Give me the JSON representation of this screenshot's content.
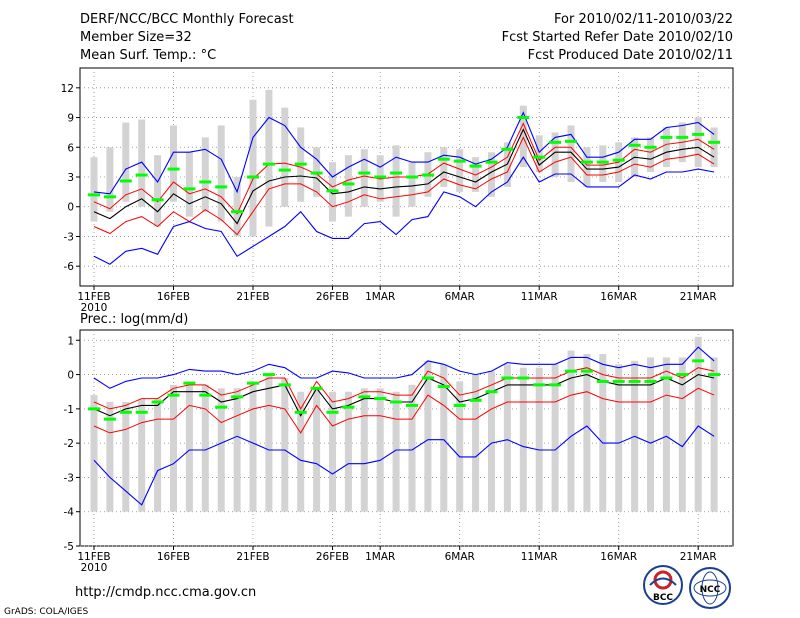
{
  "header": {
    "left_line1": "DERF/NCC/BCC Monthly Forecast",
    "left_line2": "Member Size=32",
    "left_line3": "Mean Surf. Temp.: °C",
    "right_line1": "For 2010/02/11-2010/03/22",
    "right_line2": "Fcst Started Refer Date 2010/02/10",
    "right_line3": "Fcst Produced Date 2010/02/11"
  },
  "footer": {
    "url": "http://cmdp.ncc.cma.gov.cn",
    "credit": "GrADS: COLA/IGES",
    "logo1_text": "BCC",
    "logo2_text": "NCC"
  },
  "colors": {
    "box": "#d3d3d3",
    "median": "#000000",
    "mean": "#00ff00",
    "inner": "#ff0000",
    "outer": "#0000ff",
    "grid": "#888888"
  },
  "chart_data": [
    {
      "type": "line",
      "title": "Mean Surf. Temp.: °C",
      "ylabel": "°C",
      "ylim": [
        -8,
        14
      ],
      "yticks": [
        12,
        9,
        6,
        3,
        0,
        -3,
        -6
      ],
      "days": 40,
      "xtick_labels": [
        {
          "day": 0,
          "label": "11FEB"
        },
        {
          "day": 5,
          "label": "16FEB"
        },
        {
          "day": 10,
          "label": "21FEB"
        },
        {
          "day": 15,
          "label": "26FEB"
        },
        {
          "day": 18,
          "label": "1MAR"
        },
        {
          "day": 23,
          "label": "6MAR"
        },
        {
          "day": 28,
          "label": "11MAR"
        },
        {
          "day": 33,
          "label": "16MAR"
        },
        {
          "day": 38,
          "label": "21MAR"
        }
      ],
      "year_label": "2010",
      "box_low": [
        -1.5,
        -0.5,
        0.5,
        0,
        -2,
        0.5,
        -1,
        -0.5,
        -1.5,
        -3,
        -3,
        -2,
        0,
        0.5,
        1,
        -1.5,
        -1,
        0,
        0.5,
        -1,
        0,
        1,
        2,
        1.5,
        1.5,
        1,
        2,
        4,
        3.5,
        3,
        2.5,
        2,
        2.5,
        2.5,
        3,
        3.5,
        4,
        4.5,
        4,
        4
      ],
      "box_high": [
        5,
        6,
        8.5,
        8.8,
        5.2,
        8.2,
        5.5,
        7,
        8.2,
        3,
        10.8,
        11.8,
        10,
        8,
        6,
        4.5,
        5.2,
        5.8,
        5.2,
        6.2,
        4.5,
        5.5,
        6,
        5.8,
        5,
        5.5,
        6.5,
        10.2,
        7.2,
        7.5,
        8.2,
        6,
        6.2,
        6.5,
        7,
        7,
        8,
        8.5,
        9,
        8
      ],
      "series": [
        {
          "name": "mean",
          "values": [
            1.2,
            1.0,
            2.6,
            3.2,
            0.7,
            3.8,
            1.8,
            2.5,
            2.0,
            -0.5,
            3.0,
            4.3,
            3.7,
            4.3,
            3.4,
            1.6,
            2.3,
            3.4,
            3.0,
            3.4,
            3.0,
            3.2,
            4.8,
            4.6,
            4.1,
            4.5,
            5.8,
            9.0,
            5.0,
            6.5,
            6.6,
            4.5,
            4.5,
            4.7,
            6.2,
            6.0,
            7.0,
            7.0,
            7.3,
            6.5
          ]
        },
        {
          "name": "median",
          "values": [
            -0.5,
            -1.2,
            0,
            0.8,
            -0.5,
            1.3,
            0.3,
            1.0,
            0.3,
            -1.7,
            1.6,
            2.6,
            3.0,
            3.1,
            2.9,
            1.3,
            1.5,
            2.0,
            1.8,
            2.0,
            2.1,
            2.3,
            3.5,
            3.0,
            2.5,
            3.5,
            4.3,
            7.8,
            4.2,
            5.5,
            5.5,
            3.8,
            3.8,
            4.0,
            5.0,
            4.8,
            5.5,
            5.8,
            6.0,
            5.0
          ]
        },
        {
          "name": "inner_low",
          "values": [
            -2.0,
            -2.7,
            -1.5,
            -1.0,
            -2.0,
            -0.5,
            -1.5,
            -0.3,
            -1.3,
            -2.8,
            -0.5,
            1.8,
            2.3,
            2.3,
            1.5,
            0,
            0.5,
            1.2,
            0.8,
            1.0,
            1.2,
            1.5,
            2.8,
            2.2,
            1.8,
            2.8,
            3.5,
            7.0,
            3.5,
            4.5,
            5.0,
            3.2,
            3.2,
            3.5,
            4.3,
            4.0,
            4.8,
            5.0,
            5.3,
            4.3
          ]
        },
        {
          "name": "inner_high",
          "values": [
            0.5,
            -0.2,
            1.2,
            1.8,
            0.5,
            2.5,
            1.3,
            1.8,
            1.0,
            -0.7,
            2.8,
            4.3,
            4.4,
            4.0,
            3.3,
            2.0,
            2.7,
            3.1,
            2.8,
            3.0,
            3.0,
            3.3,
            4.4,
            3.8,
            3.2,
            4.0,
            5.0,
            8.4,
            4.7,
            6.0,
            6.0,
            4.2,
            4.2,
            4.5,
            5.8,
            5.5,
            6.3,
            6.5,
            6.8,
            5.8
          ]
        },
        {
          "name": "outer_low",
          "values": [
            -5.0,
            -5.8,
            -4.5,
            -4.2,
            -4.8,
            -2.0,
            -1.5,
            -2.2,
            -2.5,
            -5.0,
            -4.0,
            -3.0,
            -2.0,
            -0.5,
            -2.5,
            -3.2,
            -3.2,
            -1.7,
            -1.5,
            -2.8,
            -1.3,
            -1.0,
            1.5,
            1.0,
            0,
            1.5,
            2.5,
            5.0,
            2.5,
            3.3,
            3.3,
            2.0,
            2.0,
            2.0,
            3.2,
            2.8,
            3.5,
            3.5,
            3.8,
            3.5
          ]
        },
        {
          "name": "outer_high",
          "values": [
            1.5,
            1.3,
            3.8,
            4.5,
            2.5,
            5.5,
            5.5,
            5.8,
            4.8,
            1.5,
            7.0,
            9.0,
            8.2,
            6.0,
            4.8,
            3.0,
            4.0,
            4.8,
            4.0,
            5.0,
            4.5,
            4.5,
            5.2,
            5.0,
            4.3,
            4.8,
            6.0,
            9.5,
            5.5,
            7.0,
            7.3,
            5.0,
            5.0,
            5.5,
            6.8,
            6.8,
            8.0,
            8.2,
            8.5,
            7.3
          ]
        }
      ]
    },
    {
      "type": "line",
      "title": "Prec.: log(mm/d)",
      "ylabel": "log(mm/d)",
      "ylim": [
        -5,
        1.3
      ],
      "yticks": [
        1,
        0,
        -1,
        -2,
        -3,
        -4,
        -5
      ],
      "days": 40,
      "xtick_labels": [
        {
          "day": 0,
          "label": "11FEB"
        },
        {
          "day": 5,
          "label": "16FEB"
        },
        {
          "day": 10,
          "label": "21FEB"
        },
        {
          "day": 15,
          "label": "26FEB"
        },
        {
          "day": 18,
          "label": "1MAR"
        },
        {
          "day": 23,
          "label": "6MAR"
        },
        {
          "day": 28,
          "label": "11MAR"
        },
        {
          "day": 33,
          "label": "16MAR"
        },
        {
          "day": 38,
          "label": "21MAR"
        }
      ],
      "year_label": "2010",
      "box_low": [
        -4,
        -4,
        -4,
        -4,
        -4,
        -4,
        -4,
        -4,
        -4,
        -4,
        -4,
        -4,
        -4,
        -4,
        -4,
        -4,
        -4,
        -4,
        -4,
        -4,
        -4,
        -4,
        -4,
        -4,
        -4,
        -4,
        -4,
        -4,
        -4,
        -4,
        -4,
        -4,
        -4,
        -4,
        -4,
        -4,
        -4,
        -4,
        -4,
        -4
      ],
      "box_high": [
        -0.6,
        -0.8,
        -0.8,
        -0.7,
        -0.7,
        -0.3,
        -0.2,
        -0.3,
        -0.4,
        -0.4,
        -0.2,
        0,
        -0.1,
        -0.5,
        -0.4,
        -0.5,
        -0.5,
        -0.4,
        -0.4,
        -0.5,
        -0.3,
        0.4,
        0.3,
        -0.2,
        0,
        0.1,
        0.3,
        0.2,
        0.2,
        0.3,
        0.7,
        0.6,
        0.6,
        0.3,
        0.4,
        0.5,
        0.5,
        0.5,
        1.1,
        0.5
      ],
      "series": [
        {
          "name": "mean",
          "values": [
            -1.0,
            -1.3,
            -1.1,
            -1.1,
            -0.8,
            -0.6,
            -0.25,
            -0.6,
            -0.95,
            -0.65,
            -0.25,
            0,
            -0.3,
            -1.1,
            -0.4,
            -1.1,
            -0.95,
            -0.65,
            -0.7,
            -0.8,
            -0.9,
            -0.1,
            -0.35,
            -0.9,
            -0.75,
            -0.5,
            -0.1,
            -0.1,
            -0.3,
            -0.3,
            0.1,
            0.1,
            -0.2,
            -0.2,
            -0.2,
            -0.2,
            -0.1,
            0,
            0.4,
            0
          ]
        },
        {
          "name": "median",
          "values": [
            -1.0,
            -1.2,
            -1.0,
            -0.9,
            -0.9,
            -0.5,
            -0.5,
            -0.5,
            -0.8,
            -0.7,
            -0.5,
            -0.4,
            -0.3,
            -1.2,
            -0.4,
            -1.0,
            -0.9,
            -0.7,
            -0.7,
            -0.8,
            -0.8,
            -0.1,
            -0.3,
            -0.8,
            -0.7,
            -0.5,
            -0.3,
            -0.3,
            -0.3,
            -0.3,
            -0.1,
            0,
            -0.2,
            -0.3,
            -0.3,
            -0.3,
            -0.1,
            -0.3,
            0,
            -0.1
          ]
        },
        {
          "name": "inner_low",
          "values": [
            -1.5,
            -1.7,
            -1.6,
            -1.4,
            -1.3,
            -1.3,
            -0.9,
            -1.0,
            -1.4,
            -1.2,
            -1.0,
            -0.9,
            -1.0,
            -1.7,
            -0.9,
            -1.5,
            -1.3,
            -1.2,
            -1.2,
            -1.3,
            -1.3,
            -0.6,
            -0.9,
            -1.3,
            -1.3,
            -1.0,
            -0.8,
            -0.8,
            -0.8,
            -0.8,
            -0.6,
            -0.5,
            -0.7,
            -0.8,
            -0.8,
            -0.8,
            -0.6,
            -0.7,
            -0.4,
            -0.6
          ]
        },
        {
          "name": "inner_high",
          "values": [
            -0.8,
            -1.0,
            -0.9,
            -0.7,
            -0.7,
            -0.4,
            -0.3,
            -0.3,
            -0.6,
            -0.5,
            -0.3,
            -0.1,
            -0.1,
            -1.0,
            -0.2,
            -0.8,
            -0.7,
            -0.5,
            -0.5,
            -0.6,
            -0.6,
            0.1,
            -0.1,
            -0.6,
            -0.5,
            -0.3,
            -0.1,
            -0.1,
            -0.1,
            -0.1,
            0.1,
            0.2,
            0,
            -0.1,
            -0.1,
            -0.1,
            0.1,
            -0.1,
            0.2,
            0.1
          ]
        },
        {
          "name": "outer_low",
          "values": [
            -2.5,
            -3.0,
            -3.4,
            -3.8,
            -2.8,
            -2.6,
            -2.2,
            -2.2,
            -2.0,
            -1.8,
            -2.0,
            -2.2,
            -2.2,
            -2.5,
            -2.6,
            -2.9,
            -2.6,
            -2.6,
            -2.5,
            -2.2,
            -2.2,
            -1.9,
            -1.9,
            -2.4,
            -2.4,
            -2.0,
            -1.9,
            -2.1,
            -2.2,
            -2.2,
            -1.8,
            -1.5,
            -2.0,
            -2.0,
            -1.8,
            -2.0,
            -1.8,
            -2.1,
            -1.5,
            -1.8
          ]
        },
        {
          "name": "outer_high",
          "values": [
            -0.1,
            -0.4,
            -0.2,
            -0.1,
            -0.1,
            0,
            0.15,
            0.1,
            0.1,
            0,
            0.1,
            0.3,
            0.2,
            -0.1,
            -0.1,
            0.1,
            0.05,
            -0.1,
            -0.1,
            -0.1,
            0,
            0.4,
            0.3,
            0.1,
            0,
            0.1,
            0.35,
            0.3,
            0.3,
            0.3,
            0.5,
            0.5,
            0.3,
            0.2,
            0.3,
            0.2,
            0.3,
            0.3,
            0.8,
            0.4
          ]
        }
      ]
    }
  ]
}
